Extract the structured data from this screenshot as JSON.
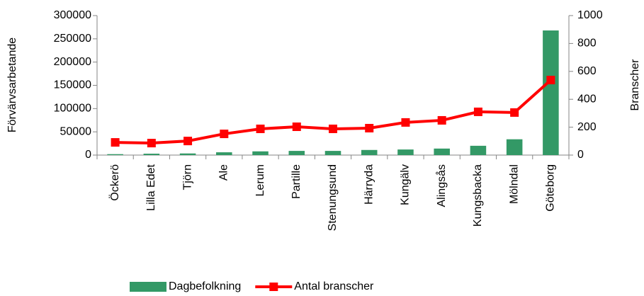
{
  "chart_data": {
    "type": "bar",
    "categories": [
      "Öckerö",
      "Lilla Edet",
      "Tjörn",
      "Ale",
      "Lerum",
      "Partille",
      "Stenungsund",
      "Härryda",
      "Kungälv",
      "Alingsås",
      "Kungsbacka",
      "Mölndal",
      "Göteborg"
    ],
    "series": [
      {
        "name": "Dagbefolkning",
        "type": "bar",
        "color": "#339966",
        "axis": "y",
        "values": [
          2000,
          3000,
          3500,
          6000,
          8000,
          9000,
          9000,
          11000,
          12000,
          14000,
          20000,
          34000,
          268000
        ]
      },
      {
        "name": "Antal branscher",
        "type": "line",
        "color": "#ff0000",
        "axis": "y2",
        "values": [
          91,
          86,
          101,
          152,
          188,
          203,
          188,
          193,
          234,
          249,
          310,
          305,
          538
        ]
      }
    ],
    "ylabel": "Förvärvsarbetande",
    "y2label": "Branscher",
    "ylim": [
      0,
      300000
    ],
    "yticks": [
      0,
      50000,
      100000,
      150000,
      200000,
      250000,
      300000
    ],
    "y2lim": [
      0,
      1000
    ],
    "y2ticks": [
      0,
      200,
      400,
      600,
      800,
      1000
    ],
    "legend": "bottom"
  }
}
